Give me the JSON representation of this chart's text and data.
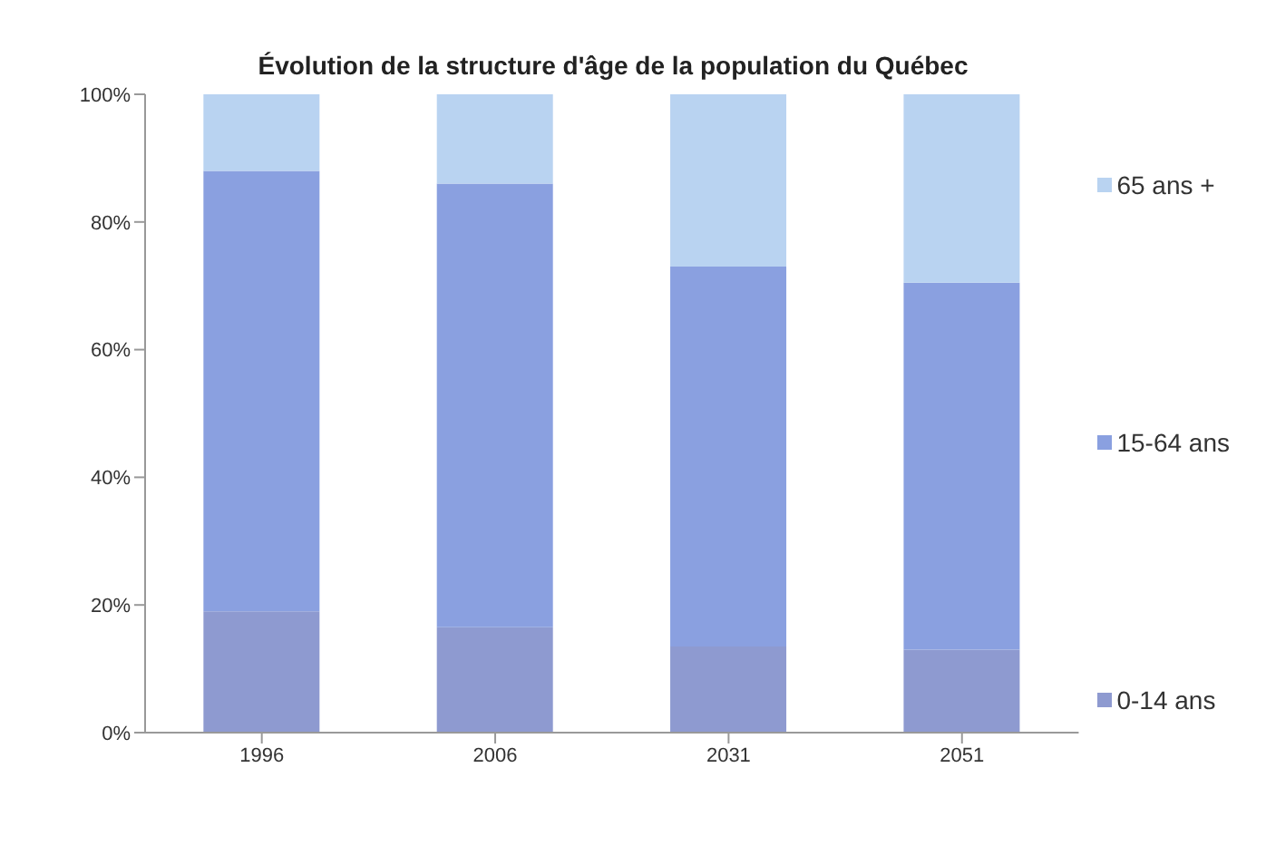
{
  "chart_data": {
    "type": "bar",
    "title": "Évolution de la structure d'âge de la population du Québec",
    "categories": [
      "1996",
      "2006",
      "2031",
      "2051"
    ],
    "stacked": true,
    "series": [
      {
        "name": "0-14 ans",
        "color": "#8e9ad0",
        "values": [
          19,
          16.5,
          13.5,
          13
        ]
      },
      {
        "name": "15-64 ans",
        "color": "#8aa0e0",
        "values": [
          69,
          69.5,
          59.5,
          57.5
        ]
      },
      {
        "name": "65 ans +",
        "color": "#b9d3f1",
        "values": [
          12,
          14,
          27,
          29.5
        ]
      }
    ],
    "ylim": [
      0,
      100
    ],
    "yticks": [
      {
        "value": 0,
        "label": "0%"
      },
      {
        "value": 20,
        "label": "20%"
      },
      {
        "value": 40,
        "label": "40%"
      },
      {
        "value": 60,
        "label": "60%"
      },
      {
        "value": 80,
        "label": "80%"
      },
      {
        "value": 100,
        "label": "100%"
      }
    ],
    "grid": false,
    "legend": "right"
  }
}
